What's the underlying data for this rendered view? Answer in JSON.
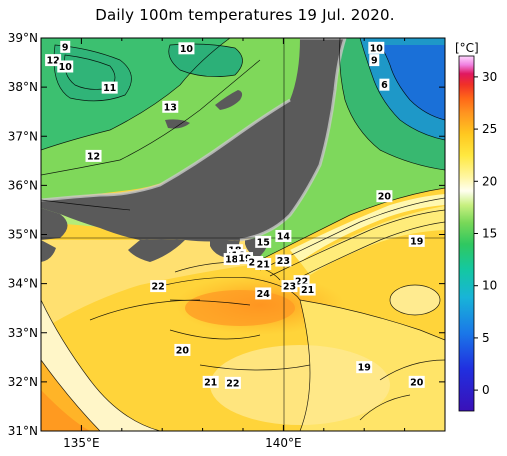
{
  "title": "Daily 100m temperatures 19 Jul. 2020.",
  "map": {
    "lon_range": [
      134,
      144
    ],
    "lat_range": [
      31,
      39
    ],
    "lon_ticks": [
      {
        "value": 135,
        "label": "135°E"
      },
      {
        "value": 140,
        "label": "140°E"
      }
    ],
    "lat_ticks": [
      {
        "value": 39,
        "label": "39°N"
      },
      {
        "value": 38,
        "label": "38°N"
      },
      {
        "value": 37,
        "label": "37°N"
      },
      {
        "value": 36,
        "label": "36°N"
      },
      {
        "value": 35,
        "label": "35°N"
      },
      {
        "value": 34,
        "label": "34°N"
      },
      {
        "value": 33,
        "label": "33°N"
      },
      {
        "value": 32,
        "label": "32°N"
      },
      {
        "value": 31,
        "label": "31°N"
      }
    ],
    "grid": true,
    "land_color": "#5a5a5a",
    "coast_color": "#c8c8c8"
  },
  "colorbar": {
    "unit": "[°C]",
    "range": [
      -2,
      32
    ],
    "ticks": [
      30,
      25,
      20,
      15,
      10,
      5,
      0
    ]
  },
  "contour_labels": [
    {
      "text": "9",
      "lon": 134.6,
      "lat": 38.82
    },
    {
      "text": "12",
      "lon": 134.3,
      "lat": 38.55
    },
    {
      "text": "10",
      "lon": 134.6,
      "lat": 38.42
    },
    {
      "text": "10",
      "lon": 137.6,
      "lat": 38.79
    },
    {
      "text": "11",
      "lon": 135.7,
      "lat": 37.99
    },
    {
      "text": "13",
      "lon": 137.2,
      "lat": 37.6
    },
    {
      "text": "12",
      "lon": 135.3,
      "lat": 36.6
    },
    {
      "text": "10",
      "lon": 142.3,
      "lat": 38.8
    },
    {
      "text": "9",
      "lon": 142.25,
      "lat": 38.55
    },
    {
      "text": "6",
      "lon": 142.5,
      "lat": 38.05
    },
    {
      "text": "20",
      "lon": 142.5,
      "lat": 35.78
    },
    {
      "text": "19",
      "lon": 143.3,
      "lat": 34.87
    },
    {
      "text": "14",
      "lon": 140.0,
      "lat": 34.97
    },
    {
      "text": "15",
      "lon": 139.5,
      "lat": 34.85
    },
    {
      "text": "18",
      "lon": 138.8,
      "lat": 34.68
    },
    {
      "text": "16",
      "lon": 138.88,
      "lat": 34.58
    },
    {
      "text": "18",
      "lon": 138.72,
      "lat": 34.5
    },
    {
      "text": "19",
      "lon": 139.05,
      "lat": 34.52
    },
    {
      "text": "20",
      "lon": 139.3,
      "lat": 34.44
    },
    {
      "text": "21",
      "lon": 139.5,
      "lat": 34.4
    },
    {
      "text": "23",
      "lon": 140.0,
      "lat": 34.47
    },
    {
      "text": "22",
      "lon": 140.45,
      "lat": 34.05
    },
    {
      "text": "23",
      "lon": 140.15,
      "lat": 33.95
    },
    {
      "text": "21",
      "lon": 140.6,
      "lat": 33.88
    },
    {
      "text": "24",
      "lon": 139.5,
      "lat": 33.8
    },
    {
      "text": "22",
      "lon": 136.9,
      "lat": 33.95
    },
    {
      "text": "20",
      "lon": 137.5,
      "lat": 32.65
    },
    {
      "text": "19",
      "lon": 142.0,
      "lat": 32.3
    },
    {
      "text": "21",
      "lon": 138.2,
      "lat": 32.0
    },
    {
      "text": "22",
      "lon": 138.75,
      "lat": 31.98
    },
    {
      "text": "20",
      "lon": 143.3,
      "lat": 32.0
    }
  ]
}
